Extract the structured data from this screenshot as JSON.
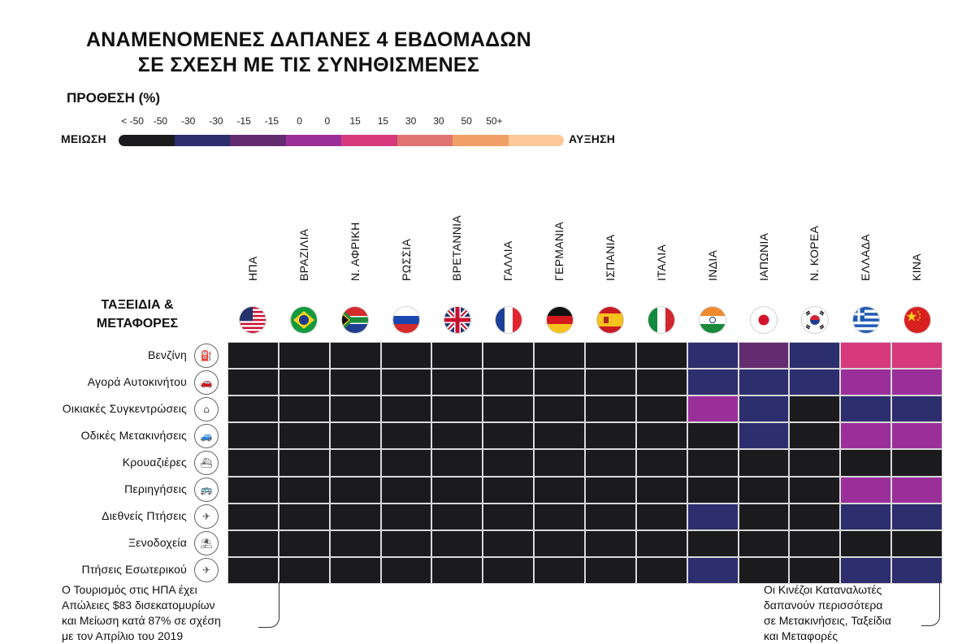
{
  "title_line1": "ΑΝΑΜΕΝΟΜΕΝΕΣ ΔΑΠΑΝΕΣ 4 ΕΒΔΟΜΑΔΩΝ",
  "title_line2": "ΣΕ ΣΧΕΣΗ ΜΕ ΤΙΣ ΣΥΝΗΘΙΣΜΕΝΕΣ",
  "legend": {
    "title": "ΠΡΟΘΕΣΗ (%)",
    "left_label": "ΜΕΙΩΣΗ",
    "right_label": "ΑΥΞΗΣΗ",
    "ticks": [
      "< -50",
      "-50",
      "-30",
      "-30",
      "-15",
      "-15",
      "0",
      "0",
      "15",
      "15",
      "30",
      "30",
      "50",
      "50+"
    ],
    "bins": [
      {
        "range": "< -50",
        "color": "#1b1b1d"
      },
      {
        "range": "-50 – -30",
        "color": "#2d2e6e"
      },
      {
        "range": "-30 – -15",
        "color": "#642c70"
      },
      {
        "range": "-15 – 0",
        "color": "#9b2f9a"
      },
      {
        "range": "0 – 15",
        "color": "#d63a7c"
      },
      {
        "range": "15 – 30",
        "color": "#e07272"
      },
      {
        "range": "30 – 50",
        "color": "#f0a066"
      },
      {
        "range": "50+",
        "color": "#ffc898"
      }
    ]
  },
  "chart_data": {
    "type": "heatmap",
    "section_label_line1": "ΤΑΞΕΙΔΙΑ &",
    "section_label_line2": "ΜΕΤΑΦΟΡΕΣ",
    "countries": [
      "ΗΠΑ",
      "ΒΡΑΖΙΛΙΑ",
      "Ν. ΑΦΡΙΚΗ",
      "ΡΩΣΣΙΑ",
      "ΒΡΕΤΑΝΝΙΑ",
      "ΓΑΛΛΙΑ",
      "ΓΕΡΜΑΝΙΑ",
      "ΙΣΠΑΝΙΑ",
      "ΙΤΑΛΙΑ",
      "ΙΝΔΙΑ",
      "ΙΑΠΩΝΙΑ",
      "Ν. ΚΟΡΕΑ",
      "ΕΛΛΑΔΑ",
      "ΚΙΝΑ"
    ],
    "categories": [
      "Βενζίνη",
      "Αγορά Αυτοκινήτου",
      "Οικιακές Συγκεντρώσεις",
      "Οδικές Μετακινήσεις",
      "Κρουαζιέρες",
      "Περιηγήσεις",
      "Διεθνείς Πτήσεις",
      "Ξενοδοχεία",
      "Πτήσεις Εσωτερικού"
    ],
    "category_icons": [
      "fuel-icon",
      "car-purchase-icon",
      "home-gathering-icon",
      "car-icon",
      "cruise-ship-icon",
      "tour-bus-icon",
      "airplane-icon",
      "hotel-beach-icon",
      "domestic-flight-icon"
    ],
    "bin_index_matrix": [
      [
        0,
        0,
        0,
        0,
        0,
        0,
        0,
        0,
        0,
        1,
        2,
        1,
        4,
        4
      ],
      [
        0,
        0,
        0,
        0,
        0,
        0,
        0,
        0,
        0,
        1,
        1,
        1,
        3,
        3
      ],
      [
        0,
        0,
        0,
        0,
        0,
        0,
        0,
        0,
        0,
        3,
        1,
        0,
        1,
        1
      ],
      [
        0,
        0,
        0,
        0,
        0,
        0,
        0,
        0,
        0,
        0,
        1,
        0,
        3,
        3
      ],
      [
        0,
        0,
        0,
        0,
        0,
        0,
        0,
        0,
        0,
        0,
        0,
        0,
        0,
        0
      ],
      [
        0,
        0,
        0,
        0,
        0,
        0,
        0,
        0,
        0,
        0,
        0,
        0,
        3,
        3
      ],
      [
        0,
        0,
        0,
        0,
        0,
        0,
        0,
        0,
        0,
        1,
        0,
        0,
        1,
        1
      ],
      [
        0,
        0,
        0,
        0,
        0,
        0,
        0,
        0,
        0,
        0,
        0,
        0,
        0,
        0
      ],
      [
        0,
        0,
        0,
        0,
        0,
        0,
        0,
        0,
        0,
        1,
        0,
        0,
        1,
        1
      ]
    ]
  },
  "notes": {
    "left": [
      "Ο Τουρισμός στις ΗΠΑ έχει",
      "Απώλειες $83 δισεκατομυρίων",
      "και Μείωση κατά 87% σε σχέση",
      "με τον Απρίλιο του 2019"
    ],
    "right": [
      "Οι Κινέζοι Καταναλωτές",
      "δαπανούν περισσότερα",
      "σε Μετακινήσεις, Ταξείδια",
      "και Μεταφορές"
    ]
  }
}
